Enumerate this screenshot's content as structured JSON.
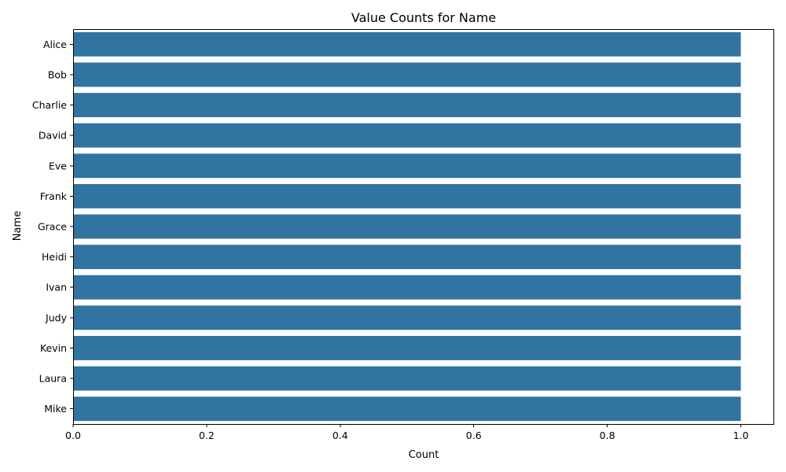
{
  "chart_data": {
    "type": "bar",
    "orientation": "horizontal",
    "title": "Value Counts for Name",
    "xlabel": "Count",
    "ylabel": "Name",
    "categories": [
      "Alice",
      "Bob",
      "Charlie",
      "David",
      "Eve",
      "Frank",
      "Grace",
      "Heidi",
      "Ivan",
      "Judy",
      "Kevin",
      "Laura",
      "Mike"
    ],
    "values": [
      1,
      1,
      1,
      1,
      1,
      1,
      1,
      1,
      1,
      1,
      1,
      1,
      1
    ],
    "xlim": [
      0,
      1.05
    ],
    "xticks": [
      0.0,
      0.2,
      0.4,
      0.6,
      0.8,
      1.0
    ],
    "xtick_labels": [
      "0.0",
      "0.2",
      "0.4",
      "0.6",
      "0.8",
      "1.0"
    ],
    "grid": false,
    "legend": "none",
    "bar_color": "#3274a1"
  }
}
